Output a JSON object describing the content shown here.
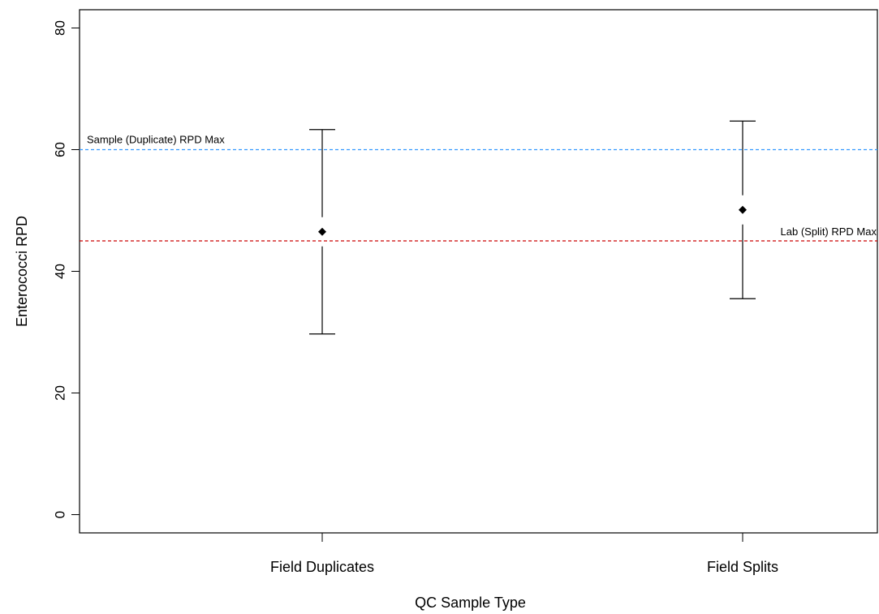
{
  "chart_data": {
    "type": "scatter",
    "xlabel": "QC Sample Type",
    "ylabel": "Enterococci RPD",
    "categories": [
      "Field Duplicates",
      "Field Splits"
    ],
    "series": [
      {
        "points": [
          {
            "category": "Field Duplicates",
            "mean": 46.5,
            "upper": 63.3,
            "lower": 29.7
          },
          {
            "category": "Field Splits",
            "mean": 50.1,
            "upper": 64.7,
            "lower": 35.5
          }
        ]
      }
    ],
    "ylim": [
      -3,
      83
    ],
    "yticks": [
      0,
      20,
      40,
      60,
      80
    ],
    "reference_lines": [
      {
        "label": "Sample (Duplicate) RPD Max",
        "value": 60,
        "color": "#3399ff"
      },
      {
        "label": "Lab (Split) RPD Max",
        "value": 45,
        "color": "#cc0000"
      }
    ],
    "grid": false,
    "legend": "none"
  }
}
